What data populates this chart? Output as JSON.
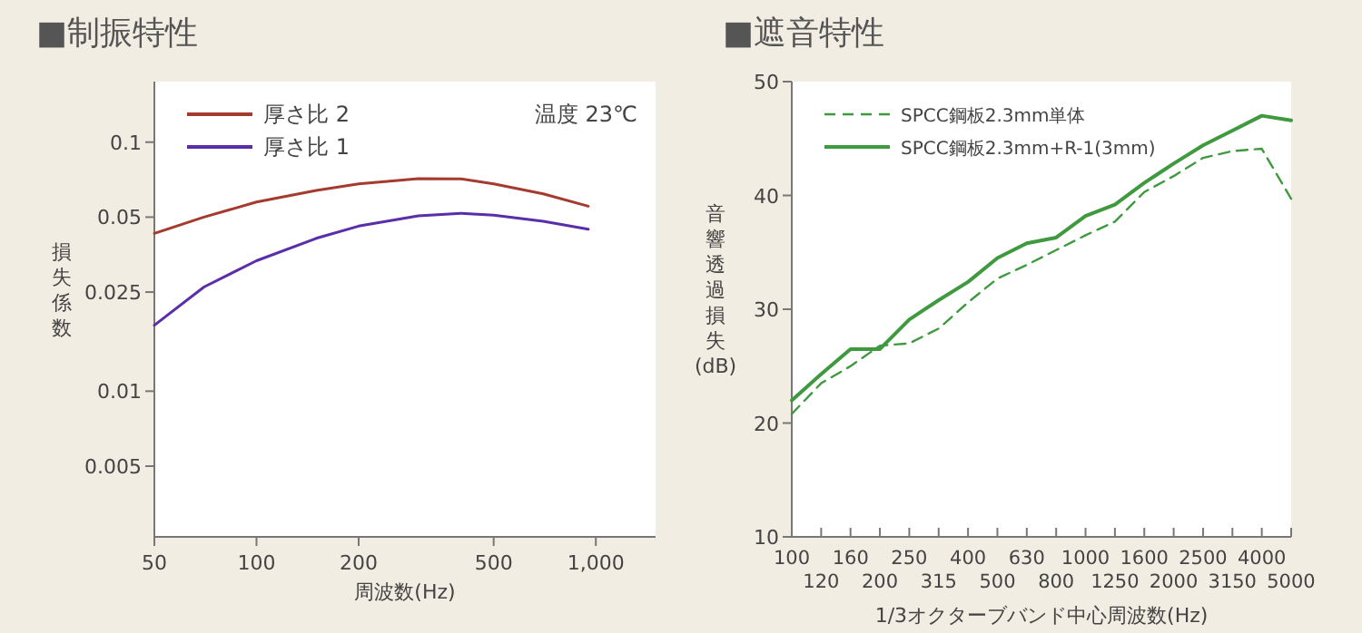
{
  "chart_data": [
    {
      "type": "line",
      "title": "■制振特性",
      "xlabel": "周波数(Hz)",
      "ylabel": "損失係数",
      "log": "xy",
      "legend": "top left",
      "annotations": [
        "温度 23℃"
      ],
      "x": [
        50,
        70,
        100,
        150,
        200,
        300,
        400,
        500,
        700,
        950
      ],
      "xlim": [
        50,
        1500
      ],
      "ylim": [
        0.0026,
        0.175
      ],
      "xticks": [
        50,
        100,
        200,
        500,
        {
          "value": 1000,
          "label": "1,000"
        }
      ],
      "yticks": [
        0.1,
        0.05,
        0.025,
        0.01,
        0.005
      ],
      "series": [
        {
          "name": "厚さ比 2",
          "color": "#a43b2e",
          "line_style": "solid",
          "values": [
            0.043,
            0.05,
            0.0575,
            0.064,
            0.068,
            0.0713,
            0.0712,
            0.068,
            0.062,
            0.0553
          ]
        },
        {
          "name": "厚さ比 1",
          "color": "#5a2ea8",
          "line_style": "solid",
          "values": [
            0.0184,
            0.0262,
            0.0334,
            0.0411,
            0.046,
            0.0506,
            0.0518,
            0.0509,
            0.0481,
            0.0447
          ]
        }
      ]
    },
    {
      "type": "line",
      "title": "■遮音特性",
      "xlabel": "1/3オクターブバンド中心周波数(Hz)",
      "ylabel": "音響透過損失(dB)",
      "legend": "top left",
      "categories": [
        "100",
        "120",
        "160",
        "200",
        "250",
        "315",
        "400",
        "500",
        "630",
        "800",
        "1000",
        "1250",
        "1600",
        "2000",
        "2500",
        "3150",
        "4000",
        "5000"
      ],
      "ylim": [
        10,
        50
      ],
      "yticks": [
        10,
        20,
        30,
        40,
        50
      ],
      "series": [
        {
          "name": "SPCC鋼板2.3mm単体",
          "color": "#3f9a3f",
          "line_style": "dashed",
          "values": [
            20.8,
            23.5,
            25.0,
            26.8,
            27.0,
            28.3,
            30.6,
            32.7,
            33.9,
            35.2,
            36.5,
            37.7,
            40.3,
            41.7,
            43.3,
            43.9,
            44.1,
            39.7
          ]
        },
        {
          "name": "SPCC鋼板2.3mm+R-1(3mm)",
          "color": "#3f9a3f",
          "line_style": "solid",
          "values": [
            22.0,
            24.3,
            26.5,
            26.5,
            29.1,
            30.8,
            32.4,
            34.5,
            35.8,
            36.3,
            38.2,
            39.2,
            41.1,
            42.8,
            44.4,
            45.7,
            47.0,
            46.6
          ]
        }
      ]
    }
  ]
}
